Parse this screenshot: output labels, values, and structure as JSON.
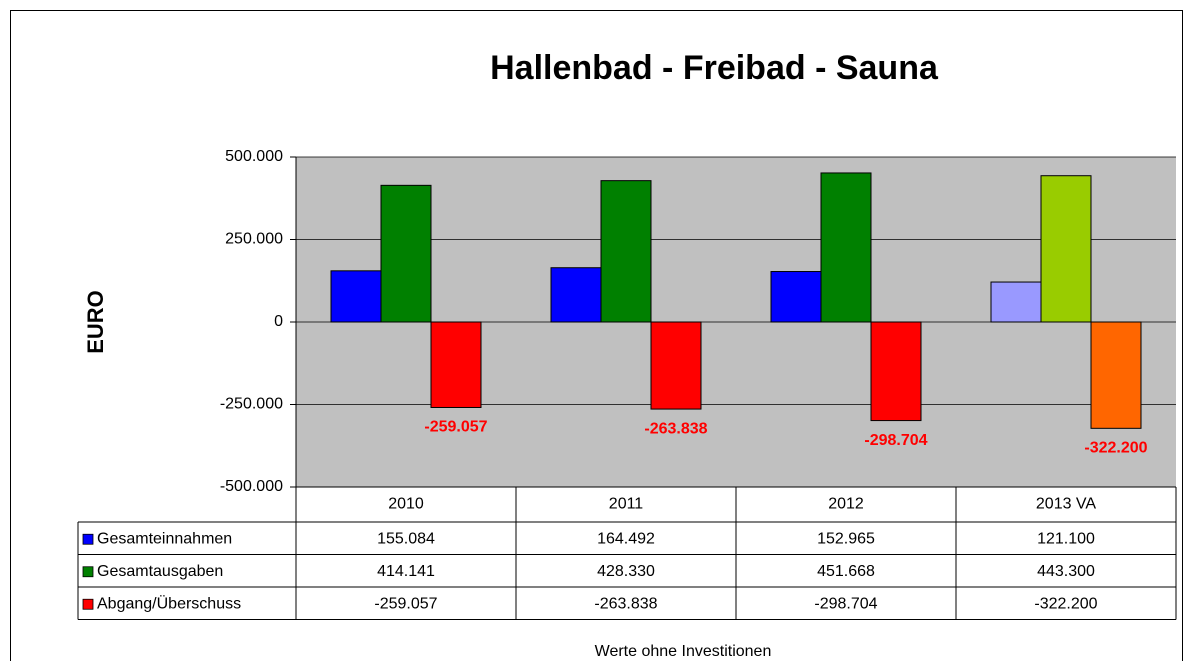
{
  "chart_data": {
    "type": "bar",
    "title": "Hallenbad - Freibad - Sauna",
    "y_label": "EURO",
    "footnote": "Werte ohne Investitionen",
    "categories": [
      "2010",
      "2011",
      "2012",
      "2013 VA"
    ],
    "series": [
      {
        "name": "Gesamteinnahmen",
        "color": "#0000ff",
        "colors": [
          "#0000ff",
          "#0000ff",
          "#0000ff",
          "#9999ff"
        ],
        "values": [
          155084,
          164492,
          152965,
          121100
        ],
        "value_labels": [
          "155.084",
          "164.492",
          "152.965",
          "121.100"
        ]
      },
      {
        "name": "Gesamtausgaben",
        "color": "#008000",
        "colors": [
          "#008000",
          "#008000",
          "#008000",
          "#99cc00"
        ],
        "values": [
          414141,
          428330,
          451668,
          443300
        ],
        "value_labels": [
          "414.141",
          "428.330",
          "451.668",
          "443.300"
        ]
      },
      {
        "name": "Abgang/Überschuss",
        "color": "#ff0000",
        "colors": [
          "#ff0000",
          "#ff0000",
          "#ff0000",
          "#ff6600"
        ],
        "values": [
          -259057,
          -263838,
          -298704,
          -322200
        ],
        "value_labels": [
          "-259.057",
          "-263.838",
          "-298.704",
          "-322.200"
        ],
        "data_labels": true,
        "data_label_color": "#ff0000"
      }
    ],
    "ylim": [
      -500000,
      500000
    ],
    "yticks": [
      {
        "value": -500000,
        "label": "-500.000"
      },
      {
        "value": -250000,
        "label": "-250.000"
      },
      0,
      {
        "value": 250000,
        "label": "250.000"
      },
      {
        "value": 500000,
        "label": "500.000"
      }
    ],
    "grid": true,
    "plot_background": "#c0c0c0",
    "data_table": true
  }
}
